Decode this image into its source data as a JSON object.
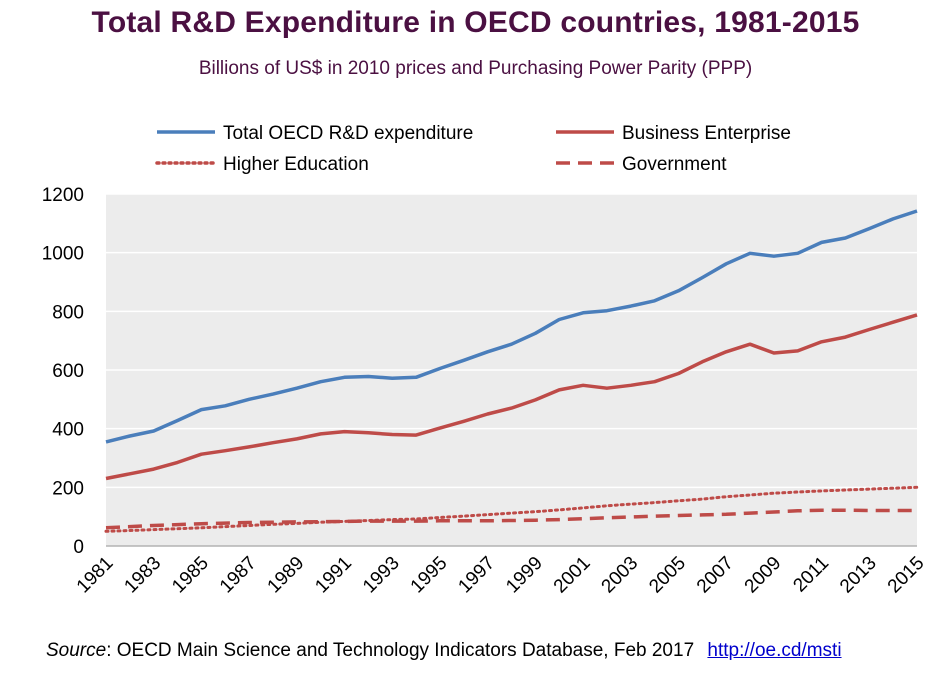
{
  "chart_data": {
    "type": "line",
    "title": "Total R&D Expenditure in OECD countries, 1981-2015",
    "subtitle": "Billions of US$ in 2010 prices and Purchasing Power Parity (PPP)",
    "x": [
      1981,
      1982,
      1983,
      1984,
      1985,
      1986,
      1987,
      1988,
      1989,
      1990,
      1991,
      1992,
      1993,
      1994,
      1995,
      1996,
      1997,
      1998,
      1999,
      2000,
      2001,
      2002,
      2003,
      2004,
      2005,
      2006,
      2007,
      2008,
      2009,
      2010,
      2011,
      2012,
      2013,
      2014,
      2015
    ],
    "x_tick_labels": [
      "1981",
      "1983",
      "1985",
      "1987",
      "1989",
      "1991",
      "1993",
      "1995",
      "1997",
      "1999",
      "2001",
      "2003",
      "2005",
      "2007",
      "2009",
      "2011",
      "2013",
      "2015"
    ],
    "ylim": [
      0,
      1200
    ],
    "y_ticks": [
      "0",
      "200",
      "400",
      "600",
      "800",
      "1000",
      "1200"
    ],
    "grid": true,
    "legend_position": "top",
    "series": [
      {
        "name": "Total OECD R&D expenditure",
        "color": "#4a7ebb",
        "style": "solid",
        "values": [
          355,
          375,
          392,
          428,
          465,
          478,
          500,
          518,
          538,
          560,
          575,
          578,
          572,
          575,
          605,
          633,
          662,
          688,
          725,
          772,
          795,
          802,
          818,
          836,
          870,
          915,
          962,
          998,
          988,
          998,
          1035,
          1050,
          1082,
          1115,
          1142
        ]
      },
      {
        "name": "Business Enterprise",
        "color": "#be4b48",
        "style": "solid",
        "values": [
          230,
          246,
          262,
          285,
          313,
          325,
          338,
          352,
          365,
          382,
          390,
          386,
          380,
          378,
          402,
          425,
          450,
          470,
          498,
          532,
          548,
          538,
          548,
          560,
          588,
          628,
          662,
          688,
          658,
          665,
          696,
          712,
          738,
          763,
          788
        ]
      },
      {
        "name": "Higher Education",
        "color": "#be4b48",
        "style": "dotted",
        "values": [
          50,
          53,
          56,
          59,
          62,
          66,
          70,
          74,
          77,
          81,
          84,
          87,
          90,
          92,
          97,
          102,
          107,
          112,
          117,
          123,
          130,
          137,
          143,
          148,
          154,
          160,
          168,
          174,
          180,
          184,
          188,
          191,
          194,
          197,
          200
        ]
      },
      {
        "name": "Government",
        "color": "#be4b48",
        "style": "dashed",
        "values": [
          62,
          66,
          70,
          73,
          76,
          78,
          80,
          81,
          82,
          83,
          84,
          85,
          85,
          85,
          86,
          86,
          86,
          87,
          88,
          90,
          93,
          96,
          99,
          102,
          104,
          106,
          108,
          112,
          116,
          120,
          122,
          122,
          121,
          121,
          121
        ]
      }
    ]
  },
  "source": {
    "lead": "Source",
    "text": ": OECD Main Science and Technology Indicators Database, Feb 2017",
    "link": "http://oe.cd/msti"
  }
}
